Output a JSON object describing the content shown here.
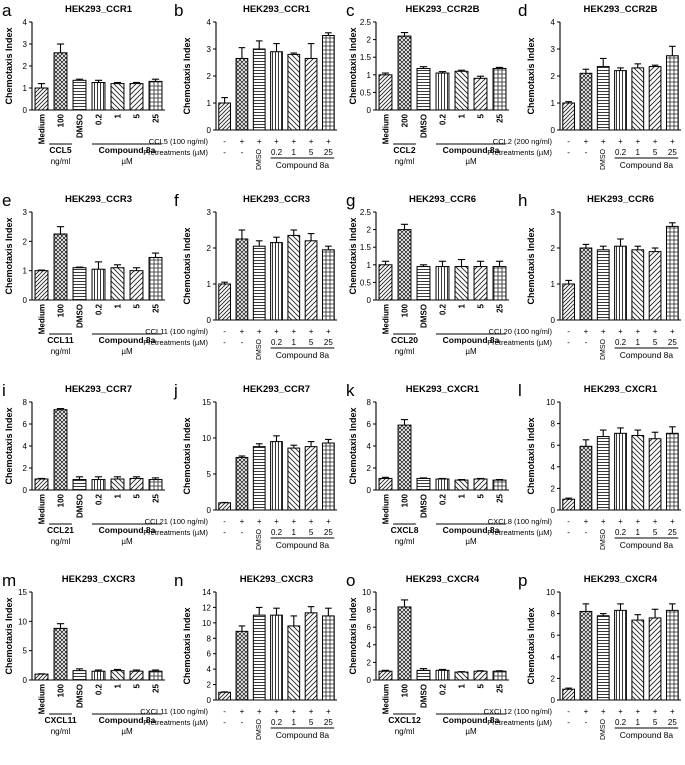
{
  "figure": {
    "shared_labels": {
      "ylabel": "Chemotaxis Index",
      "medium": "Medium",
      "dmso": "DMSO",
      "compound": "Compound 8a",
      "unit_uM": "µM",
      "unit_ngml": "ng/ml",
      "pretreat_label": "Pretreatments (µM)",
      "pretreat_row": [
        "-",
        "-",
        "DMSO",
        "0.2",
        "1",
        "5",
        "25"
      ],
      "agonist_row": [
        "-",
        "+",
        "+",
        "+",
        "+",
        "+",
        "+"
      ],
      "doses": [
        "0.2",
        "1",
        "5",
        "25"
      ]
    },
    "legend_patterns": {
      "medium": "diagonal-stripes",
      "ligand": "crosshatch",
      "dmso": "horizontal-lines",
      "0.2": "vertical-lines",
      "1": "diagonal-left",
      "5": "diagonal-right",
      "25": "grid"
    }
  },
  "chart_data": [
    {
      "panel": "a",
      "type": "bar",
      "style": "A",
      "title": "HEK293_CCR1",
      "ligand": "CCL5",
      "dose": "100",
      "ylim": [
        0,
        4
      ],
      "yticks": [
        0,
        1,
        2,
        3,
        4
      ],
      "values": [
        1.0,
        2.6,
        1.35,
        1.25,
        1.2,
        1.2,
        1.3
      ],
      "errors": [
        0.2,
        0.4,
        0.05,
        0.1,
        0.05,
        0.05,
        0.1
      ]
    },
    {
      "panel": "b",
      "type": "bar",
      "style": "B",
      "title": "HEK293_CCR1",
      "agonist_label": "CCL5 (100 ng/ml)",
      "ylim": [
        0,
        4
      ],
      "yticks": [
        0,
        1,
        2,
        3,
        4
      ],
      "values": [
        1.0,
        2.65,
        3.0,
        2.9,
        2.8,
        2.65,
        3.5
      ],
      "errors": [
        0.2,
        0.4,
        0.3,
        0.3,
        0.05,
        0.55,
        0.1
      ]
    },
    {
      "panel": "c",
      "type": "bar",
      "style": "A",
      "title": "HEK293_CCR2B",
      "ligand": "CCL2",
      "dose": "200",
      "ylim": [
        0,
        2.5
      ],
      "yticks": [
        0,
        0.5,
        1.0,
        1.5,
        2.0,
        2.5
      ],
      "values": [
        1.0,
        2.1,
        1.18,
        1.05,
        1.1,
        0.9,
        1.18
      ],
      "errors": [
        0.05,
        0.1,
        0.05,
        0.04,
        0.03,
        0.06,
        0.03
      ]
    },
    {
      "panel": "d",
      "type": "bar",
      "style": "B",
      "title": "HEK293_CCR2B",
      "agonist_label": "CCL2 (200 ng/ml)",
      "ylim": [
        0,
        4
      ],
      "yticks": [
        0,
        1,
        2,
        3,
        4
      ],
      "values": [
        1.0,
        2.1,
        2.35,
        2.2,
        2.3,
        2.35,
        2.75
      ],
      "errors": [
        0.05,
        0.15,
        0.3,
        0.1,
        0.15,
        0.05,
        0.35
      ]
    },
    {
      "panel": "e",
      "type": "bar",
      "style": "A",
      "title": "HEK293_CCR3",
      "ligand": "CCL11",
      "dose": "100",
      "ylim": [
        0,
        3
      ],
      "yticks": [
        0,
        1,
        2,
        3
      ],
      "values": [
        1.0,
        2.25,
        1.1,
        1.05,
        1.1,
        1.0,
        1.45
      ],
      "errors": [
        0.02,
        0.25,
        0.02,
        0.25,
        0.1,
        0.1,
        0.15
      ]
    },
    {
      "panel": "f",
      "type": "bar",
      "style": "B",
      "title": "HEK293_CCR3",
      "agonist_label": "CCL11 (100 ng/ml)",
      "ylim": [
        0,
        3
      ],
      "yticks": [
        0,
        1,
        2,
        3
      ],
      "values": [
        1.0,
        2.25,
        2.05,
        2.15,
        2.35,
        2.2,
        1.95
      ],
      "errors": [
        0.05,
        0.25,
        0.15,
        0.15,
        0.15,
        0.2,
        0.1
      ]
    },
    {
      "panel": "g",
      "type": "bar",
      "style": "A",
      "title": "HEK293_CCR6",
      "ligand": "CCL20",
      "dose": "100",
      "ylim": [
        0,
        2.5
      ],
      "yticks": [
        0,
        0.5,
        1.0,
        1.5,
        2.0,
        2.5
      ],
      "values": [
        1.0,
        2.0,
        0.95,
        0.95,
        0.95,
        0.95,
        0.95
      ],
      "errors": [
        0.1,
        0.15,
        0.05,
        0.15,
        0.2,
        0.15,
        0.15
      ]
    },
    {
      "panel": "h",
      "type": "bar",
      "style": "B",
      "title": "HEK293_CCR6",
      "agonist_label": "CCL20 (100 ng/ml)",
      "ylim": [
        0,
        3
      ],
      "yticks": [
        0,
        1,
        2,
        3
      ],
      "values": [
        1.0,
        2.0,
        1.95,
        2.05,
        1.95,
        1.9,
        2.6
      ],
      "errors": [
        0.1,
        0.1,
        0.1,
        0.2,
        0.1,
        0.1,
        0.1
      ]
    },
    {
      "panel": "i",
      "type": "bar",
      "style": "A",
      "title": "HEK293_CCR7",
      "ligand": "CCL21",
      "dose": "100",
      "ylim": [
        0,
        8
      ],
      "yticks": [
        0,
        2,
        4,
        6,
        8
      ],
      "values": [
        1.0,
        7.3,
        0.95,
        0.95,
        1.0,
        1.05,
        0.95
      ],
      "errors": [
        0.05,
        0.1,
        0.25,
        0.25,
        0.2,
        0.15,
        0.15
      ]
    },
    {
      "panel": "j",
      "type": "bar",
      "style": "B",
      "title": "HEK293_CCR7",
      "agonist_label": "CCL21 (100 ng/ml)",
      "ylim": [
        0,
        15
      ],
      "yticks": [
        0,
        5,
        10,
        15
      ],
      "values": [
        1.0,
        7.3,
        8.8,
        9.5,
        8.6,
        8.8,
        9.3
      ],
      "errors": [
        0.05,
        0.2,
        0.4,
        0.8,
        0.4,
        0.7,
        0.5
      ]
    },
    {
      "panel": "k",
      "type": "bar",
      "style": "A",
      "title": "HEK293_CXCR1",
      "ligand": "CXCL8",
      "dose": "100",
      "ylim": [
        0,
        8
      ],
      "yticks": [
        0,
        2,
        4,
        6,
        8
      ],
      "values": [
        1.05,
        5.9,
        1.05,
        1.0,
        0.9,
        1.0,
        0.9
      ],
      "errors": [
        0.1,
        0.5,
        0.05,
        0.05,
        0.05,
        0.05,
        0.05
      ]
    },
    {
      "panel": "l",
      "type": "bar",
      "style": "B",
      "title": "HEK293_CXCR1",
      "agonist_label": "CXCL8 (100 ng/ml)",
      "ylim": [
        0,
        10
      ],
      "yticks": [
        0,
        2,
        4,
        6,
        8,
        10
      ],
      "values": [
        1.0,
        5.9,
        6.8,
        7.1,
        6.9,
        6.6,
        7.1
      ],
      "errors": [
        0.1,
        0.6,
        0.6,
        0.5,
        0.5,
        0.6,
        0.6
      ]
    },
    {
      "panel": "m",
      "type": "bar",
      "style": "A",
      "title": "HEK293_CXCR3",
      "ligand": "CXCL11",
      "dose": "100",
      "ylim": [
        0,
        15
      ],
      "yticks": [
        0,
        5,
        10,
        15
      ],
      "values": [
        1.0,
        8.8,
        1.6,
        1.5,
        1.6,
        1.5,
        1.5
      ],
      "errors": [
        0.05,
        0.8,
        0.3,
        0.2,
        0.2,
        0.2,
        0.2
      ]
    },
    {
      "panel": "n",
      "type": "bar",
      "style": "B",
      "title": "HEK293_CXCR3",
      "agonist_label": "CXCL11 (100 ng/ml)",
      "ylim": [
        0,
        14
      ],
      "yticks": [
        0,
        2,
        4,
        6,
        8,
        10,
        12,
        14
      ],
      "values": [
        1.0,
        8.9,
        11.0,
        11.0,
        9.6,
        11.3,
        10.9
      ],
      "errors": [
        0.05,
        0.7,
        1.0,
        0.9,
        1.3,
        0.8,
        1.0
      ]
    },
    {
      "panel": "o",
      "type": "bar",
      "style": "A",
      "title": "HEK293_CXCR4",
      "ligand": "CXCL12",
      "dose": "100",
      "ylim": [
        0,
        10
      ],
      "yticks": [
        0,
        2,
        4,
        6,
        8,
        10
      ],
      "values": [
        1.0,
        8.3,
        1.1,
        1.1,
        0.9,
        1.0,
        1.0
      ],
      "errors": [
        0.1,
        0.8,
        0.2,
        0.1,
        0.05,
        0.05,
        0.05
      ]
    },
    {
      "panel": "p",
      "type": "bar",
      "style": "B",
      "title": "HEK293_CXCR4",
      "agonist_label": "CXCL12 (100 ng/ml)",
      "ylim": [
        0,
        10
      ],
      "yticks": [
        0,
        2,
        4,
        6,
        8,
        10
      ],
      "values": [
        1.0,
        8.2,
        7.8,
        8.3,
        7.4,
        7.6,
        8.3
      ],
      "errors": [
        0.1,
        0.7,
        0.2,
        0.6,
        0.5,
        0.8,
        0.6
      ]
    }
  ]
}
